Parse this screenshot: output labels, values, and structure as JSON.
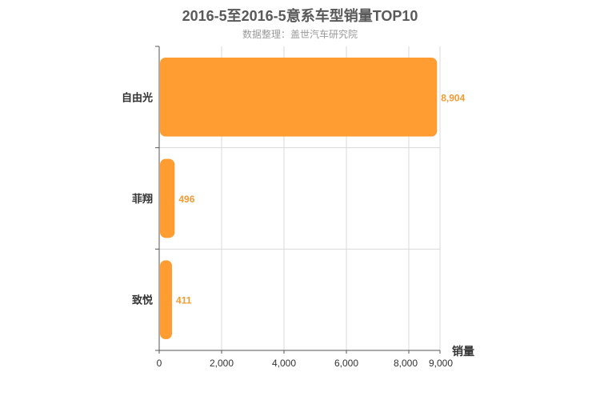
{
  "chart_data": {
    "type": "bar",
    "orientation": "horizontal",
    "title": "2016-5至2016-5意系车型销量TOP10",
    "subtitle": "数据整理：盖世汽车研究院",
    "xlabel": "销量",
    "ylabel": "",
    "categories": [
      "自由光",
      "菲翔",
      "致悦"
    ],
    "values": [
      8904,
      496,
      411
    ],
    "value_labels": [
      "8,904",
      "496",
      "411"
    ],
    "xlim": [
      0,
      9000
    ],
    "xticks": [
      0,
      2000,
      4000,
      6000,
      8000,
      9000
    ],
    "xtick_labels": [
      "0",
      "2,000",
      "4,000",
      "6,000",
      "8,000",
      "9,000"
    ],
    "bar_color": "#ff9d33",
    "label_color": "#f39c33",
    "grid": true,
    "legend": "none"
  }
}
